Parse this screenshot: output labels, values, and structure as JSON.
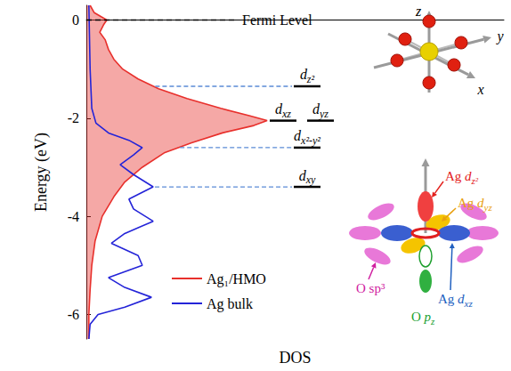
{
  "chart_data": {
    "type": "line",
    "x_label": "DOS",
    "y_label": "Energy (eV)",
    "xlim": [
      0,
      1
    ],
    "ylim": [
      -6.5,
      0.3
    ],
    "yticks": [
      0,
      -2,
      -4,
      -6
    ],
    "tick_labels": "y",
    "grid": false,
    "legend": "bottom",
    "series": [
      {
        "name": "Ag₁/HMO",
        "type": "area",
        "color": "#e8302c",
        "x": [
          0.009,
          0.019,
          0.049,
          0.041,
          0.032,
          0.045,
          0.053,
          0.066,
          0.087,
          0.124,
          0.173,
          0.241,
          0.322,
          0.39,
          0.433,
          0.401,
          0.326,
          0.252,
          0.188,
          0.134,
          0.092,
          0.066,
          0.038,
          0.021,
          0.013,
          0.009,
          0.006,
          0.006
        ],
        "y": [
          0.3,
          0.15,
          0.0,
          -0.1,
          -0.25,
          -0.4,
          -0.6,
          -0.8,
          -1.0,
          -1.2,
          -1.4,
          -1.6,
          -1.8,
          -1.95,
          -2.05,
          -2.15,
          -2.3,
          -2.5,
          -2.7,
          -3.0,
          -3.3,
          -3.6,
          -4.0,
          -4.5,
          -5.0,
          -5.5,
          -6.0,
          -6.5
        ]
      },
      {
        "name": "Ag bulk",
        "type": "line",
        "color": "#2424d8",
        "x": [
          0.006,
          0.009,
          0.013,
          0.023,
          0.053,
          0.102,
          0.134,
          0.113,
          0.081,
          0.113,
          0.16,
          0.102,
          0.113,
          0.16,
          0.092,
          0.06,
          0.124,
          0.134,
          0.053,
          0.092,
          0.156,
          0.092,
          0.028,
          0.009,
          0.006
        ],
        "y": [
          0.3,
          -1.0,
          -1.8,
          -2.1,
          -2.3,
          -2.45,
          -2.6,
          -2.75,
          -2.95,
          -3.15,
          -3.4,
          -3.65,
          -3.85,
          -4.1,
          -4.35,
          -4.55,
          -4.8,
          -5.0,
          -5.25,
          -5.45,
          -5.65,
          -5.85,
          -6.0,
          -6.2,
          -6.5
        ]
      }
    ],
    "reference_lines": [
      {
        "value": 0,
        "label": "Fermi Level",
        "line_style": "dashed",
        "color": "#000000"
      }
    ],
    "levels": [
      {
        "label": "dz²",
        "energy": -1.35
      },
      {
        "label": "dxz",
        "energy": -2.05
      },
      {
        "label": "dyz",
        "energy": -2.05
      },
      {
        "label": "dx²-y²",
        "energy": -2.6
      },
      {
        "label": "dxy",
        "energy": -3.4
      }
    ],
    "inset_axes": [
      "z",
      "y",
      "x"
    ],
    "inset_labels": [
      {
        "text": "Ag dz²",
        "color": "#e3201c"
      },
      {
        "text": "Ag dyz",
        "color": "#e8a010"
      },
      {
        "text": "Ag dxz",
        "color": "#2060c0"
      },
      {
        "text": "O sp³",
        "color": "#d020a0"
      },
      {
        "text": "O pz",
        "color": "#20a030"
      }
    ]
  }
}
